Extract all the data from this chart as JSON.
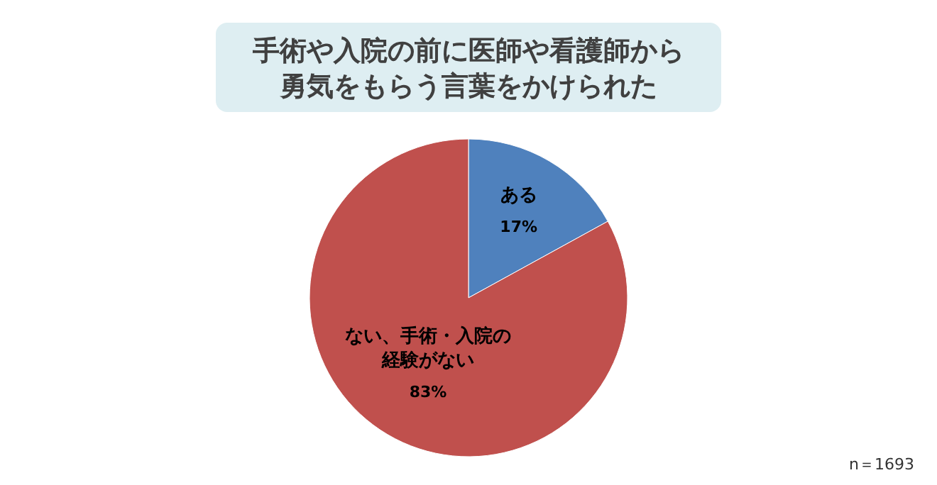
{
  "chart_data": {
    "type": "pie",
    "title": "手術や入院の前に医師や看護師から勇気をもらう言葉をかけられた",
    "categories": [
      "ある",
      "ない、手術・入院の経験がない"
    ],
    "values": [
      17,
      83
    ],
    "colors": [
      "#4f81bd",
      "#c0504d"
    ],
    "value_labels": [
      "17%",
      "83%"
    ],
    "annotations": [
      "n＝1693"
    ]
  }
}
